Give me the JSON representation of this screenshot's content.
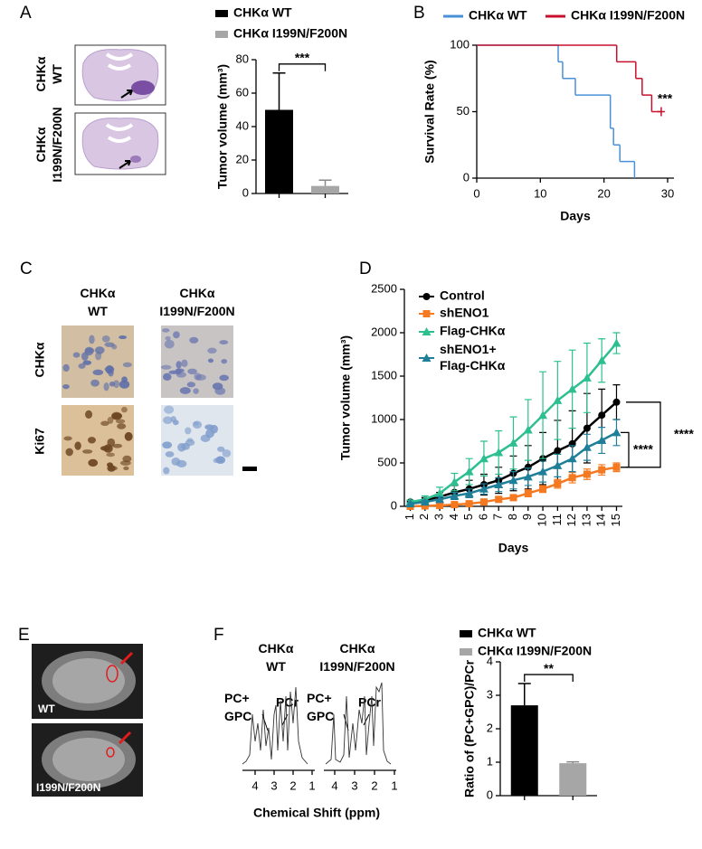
{
  "panel_labels": [
    "A",
    "B",
    "C",
    "D",
    "E",
    "F"
  ],
  "panel_a": {
    "image_labels": [
      [
        "CHKα",
        "WT"
      ],
      [
        "CHKα",
        "I199N/F200N"
      ]
    ]
  },
  "panel_c": {
    "columns": [
      [
        "CHKα",
        "WT"
      ],
      [
        "CHKα",
        "I199N/F200N"
      ]
    ],
    "rows": [
      "CHKα",
      "Ki67"
    ]
  },
  "panel_e": {
    "image_labels": [
      "WT",
      "I199N/F200N"
    ]
  },
  "panel_f": {
    "spectra": [
      {
        "header": [
          "CHKα",
          "WT"
        ],
        "peak_labels": [
          [
            "PC+",
            "GPC"
          ],
          "PCr"
        ]
      },
      {
        "header": [
          "CHKα",
          "I199N/F200N"
        ],
        "peak_labels": [
          [
            "PC+",
            "GPC"
          ],
          "PCr"
        ]
      }
    ],
    "shift_ticks": [
      4,
      3,
      2,
      1
    ],
    "xlabel": "Chemical Shift (ppm)"
  },
  "chart_data": [
    {
      "type": "bar",
      "ylabel": "Tumor volume (mm³)",
      "ylim": [
        0,
        80
      ],
      "yticks": [
        0,
        20,
        40,
        60,
        80
      ],
      "series": [
        {
          "name": "CHKα WT",
          "color": "#000000",
          "values": [
            50
          ],
          "errors": [
            22
          ]
        },
        {
          "name": "CHKα I199N/F200N",
          "color": "#a6a6a6",
          "values": [
            4.5
          ],
          "errors": [
            3.5
          ]
        }
      ],
      "annotations": [
        "***"
      ]
    },
    {
      "type": "line",
      "step": true,
      "xlabel": "Days",
      "ylabel": "Survival Rate (%)",
      "xlim": [
        0,
        31
      ],
      "xticks": [
        0,
        10,
        20,
        30
      ],
      "ylim": [
        0,
        100
      ],
      "yticks": [
        0,
        50,
        100
      ],
      "series": [
        {
          "name": "CHKα WT",
          "color": "#4a90d9",
          "x": [
            0,
            12.8,
            13.5,
            15.5,
            21,
            21.5,
            22.5,
            24.8
          ],
          "values": [
            100,
            87.5,
            75,
            62.5,
            37.5,
            25,
            12.5,
            0
          ]
        },
        {
          "name": "CHKα I199N/F200N",
          "color": "#c8102e",
          "x": [
            0,
            22,
            25,
            26,
            27.5,
            29
          ],
          "values": [
            100,
            87.5,
            75,
            62.5,
            50,
            50
          ],
          "censored": true
        }
      ],
      "annotations": [
        "***"
      ]
    },
    {
      "type": "line",
      "xlabel": "Days",
      "ylabel": "Tumor volume (mm³)",
      "xlim": [
        0.6,
        15.4
      ],
      "xticks": [
        1,
        2,
        3,
        4,
        5,
        6,
        7,
        8,
        9,
        10,
        11,
        12,
        13,
        14,
        15
      ],
      "ylim": [
        0,
        2500
      ],
      "yticks": [
        0,
        500,
        1000,
        1500,
        2000,
        2500
      ],
      "series": [
        {
          "name": "Control",
          "color": "#000000",
          "marker": "circle",
          "x": [
            1,
            2,
            3,
            4,
            5,
            6,
            7,
            8,
            9,
            10,
            11,
            12,
            13,
            14,
            15
          ],
          "values": [
            50,
            70,
            110,
            160,
            200,
            250,
            300,
            380,
            450,
            550,
            640,
            720,
            900,
            1050,
            1200
          ],
          "errors": [
            20,
            30,
            50,
            80,
            100,
            120,
            150,
            200,
            250,
            300,
            350,
            380,
            400,
            300,
            200
          ]
        },
        {
          "name": "shENO1",
          "color": "#f47920",
          "marker": "square",
          "x": [
            1,
            2,
            3,
            4,
            5,
            6,
            7,
            8,
            9,
            10,
            11,
            12,
            13,
            14,
            15
          ],
          "values": [
            0,
            5,
            10,
            20,
            30,
            50,
            80,
            100,
            150,
            200,
            260,
            330,
            370,
            420,
            450
          ],
          "errors": [
            5,
            10,
            10,
            15,
            20,
            20,
            25,
            30,
            40,
            40,
            50,
            60,
            60,
            60,
            50
          ]
        },
        {
          "name": "Flag-CHKα",
          "color": "#2ebf91",
          "marker": "triangle",
          "x": [
            1,
            2,
            3,
            4,
            5,
            6,
            7,
            8,
            9,
            10,
            11,
            12,
            13,
            14,
            15
          ],
          "values": [
            50,
            80,
            150,
            280,
            400,
            550,
            620,
            730,
            880,
            1050,
            1220,
            1350,
            1480,
            1680,
            1880
          ],
          "errors": [
            20,
            40,
            70,
            100,
            150,
            200,
            250,
            300,
            350,
            500,
            450,
            450,
            400,
            250,
            120
          ]
        },
        {
          "name": [
            "shENO1+",
            "Flag-CHKα"
          ],
          "color": "#1f7f99",
          "marker": "triangle",
          "x": [
            1,
            2,
            3,
            4,
            5,
            6,
            7,
            8,
            9,
            10,
            11,
            12,
            13,
            14,
            15
          ],
          "values": [
            30,
            50,
            80,
            120,
            150,
            200,
            250,
            300,
            340,
            400,
            470,
            550,
            680,
            760,
            850
          ],
          "errors": [
            15,
            20,
            30,
            40,
            50,
            60,
            80,
            100,
            100,
            120,
            130,
            150,
            150,
            150,
            150
          ]
        }
      ],
      "annotations": [
        "****",
        "****"
      ]
    },
    {
      "type": "bar",
      "ylabel": "Ratio of (PC+GPC)/PCr",
      "ylim": [
        0,
        4
      ],
      "yticks": [
        0,
        1,
        2,
        3,
        4
      ],
      "series": [
        {
          "name": "CHKα WT",
          "color": "#000000",
          "values": [
            2.7
          ],
          "errors": [
            0.65
          ]
        },
        {
          "name": "CHKα I199N/F200N",
          "color": "#a6a6a6",
          "values": [
            0.97
          ],
          "errors": [
            0.04
          ]
        }
      ],
      "annotations": [
        "**"
      ]
    }
  ]
}
